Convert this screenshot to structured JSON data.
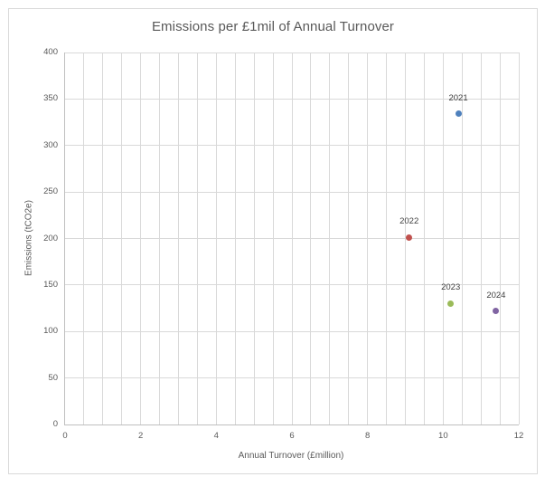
{
  "chart_data": {
    "type": "scatter",
    "title": "Emissions per £1mil of Annual Turnover",
    "xlabel": "Annual Turnover (£million)",
    "ylabel": "Emissions (tCO2e)",
    "xlim": [
      0,
      12
    ],
    "ylim": [
      0,
      400
    ],
    "x_ticks": [
      0,
      2,
      4,
      6,
      8,
      10,
      12
    ],
    "y_ticks": [
      0,
      50,
      100,
      150,
      200,
      250,
      300,
      350,
      400
    ],
    "x_minor_gridline_step": 0.5,
    "y_major_gridline_step": 50,
    "grid": true,
    "legend": "none",
    "data_labels": "series-name-above-point",
    "series": [
      {
        "name": "2021",
        "color": "#4F81BD",
        "points": [
          {
            "x": 10.4,
            "y": 334
          }
        ]
      },
      {
        "name": "2022",
        "color": "#C0504D",
        "points": [
          {
            "x": 9.1,
            "y": 201
          }
        ]
      },
      {
        "name": "2023",
        "color": "#9BBB59",
        "points": [
          {
            "x": 10.2,
            "y": 130
          }
        ]
      },
      {
        "name": "2024",
        "color": "#8064A2",
        "points": [
          {
            "x": 11.4,
            "y": 122
          }
        ]
      }
    ],
    "colors": {
      "gridline": "#d9d9d9",
      "axis_line": "#bfbfbf",
      "chart_border": "#d9d9d9",
      "tick_label": "#595959",
      "title": "#595959",
      "data_label": "#404040",
      "background": "#ffffff"
    }
  }
}
